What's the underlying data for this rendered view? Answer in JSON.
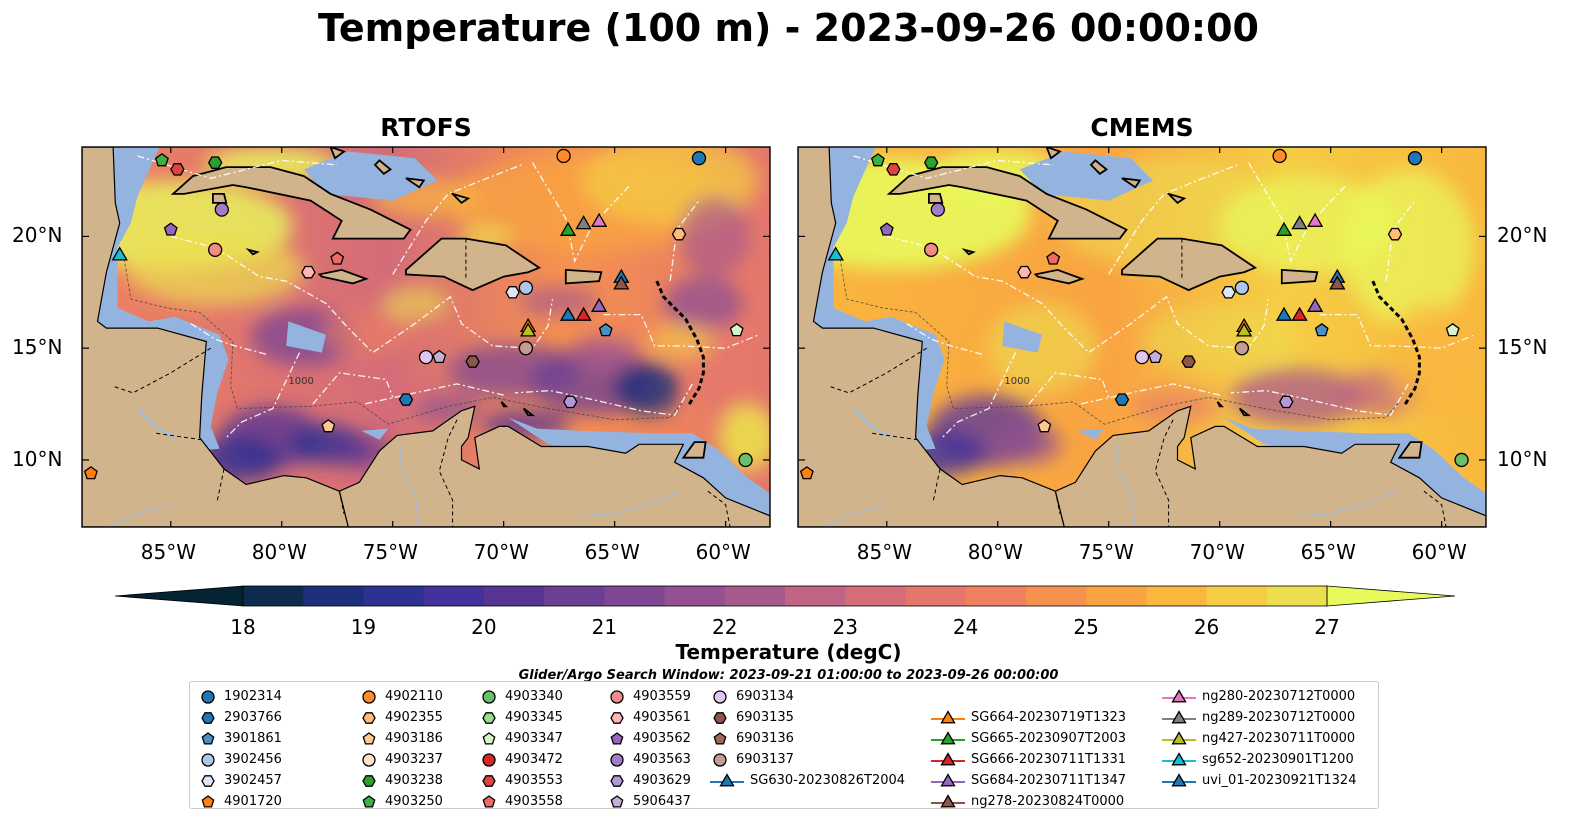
{
  "figure": {
    "title": "Temperature (100 m) - 2023-09-26 00:00:00",
    "panels": [
      {
        "title": "RTOFS"
      },
      {
        "title": "CMEMS"
      }
    ],
    "lon_ticks": [
      "85°W",
      "80°W",
      "75°W",
      "70°W",
      "65°W",
      "60°W"
    ],
    "lat_ticks": [
      "20°N",
      "15°N",
      "10°N"
    ],
    "contour_labels": [
      "1000"
    ],
    "colorbar": {
      "label": "Temperature (degC)",
      "ticks": [
        "18",
        "19",
        "20",
        "21",
        "22",
        "23",
        "24",
        "25",
        "26",
        "27"
      ],
      "min": 18,
      "max": 27,
      "extend": "both",
      "colormap": "thermal",
      "colors": [
        "#042333",
        "#0d2b4f",
        "#1d2e7c",
        "#2f3192",
        "#44329c",
        "#583593",
        "#6b3f94",
        "#7e4893",
        "#935191",
        "#a95a8c",
        "#c06384",
        "#d46c79",
        "#e4766c",
        "#ef8160",
        "#f6914f",
        "#f9a342",
        "#f9b73e",
        "#f5cd45",
        "#ecde4e",
        "#e8fa5b"
      ]
    },
    "legend": {
      "title": "Glider/Argo Search Window: 2023-09-21 01:00:00 to 2023-09-26 00:00:00",
      "items": [
        {
          "label": "1902314",
          "marker": "circle",
          "color": "#1f77b4"
        },
        {
          "label": "2903766",
          "marker": "hexagon",
          "color": "#1f77b4"
        },
        {
          "label": "3901861",
          "marker": "pentagon",
          "color": "#4a90c8"
        },
        {
          "label": "3902456",
          "marker": "circle",
          "color": "#aec7e8"
        },
        {
          "label": "3902457",
          "marker": "hexagon",
          "color": "#dbe9f6"
        },
        {
          "label": "4901720",
          "marker": "pentagon",
          "color": "#ff7f0e"
        },
        {
          "label": "4902110",
          "marker": "circle",
          "color": "#ff8c2a"
        },
        {
          "label": "4902355",
          "marker": "hexagon",
          "color": "#ffbb78"
        },
        {
          "label": "4903186",
          "marker": "pentagon",
          "color": "#ffc88e"
        },
        {
          "label": "4903237",
          "marker": "circle",
          "color": "#ffe4c4"
        },
        {
          "label": "4903238",
          "marker": "hexagon",
          "color": "#2ca02c"
        },
        {
          "label": "4903250",
          "marker": "pentagon",
          "color": "#3cb043"
        },
        {
          "label": "4903340",
          "marker": "circle",
          "color": "#6abf69"
        },
        {
          "label": "4903345",
          "marker": "hexagon",
          "color": "#98df8a"
        },
        {
          "label": "4903347",
          "marker": "pentagon",
          "color": "#d4f5cc"
        },
        {
          "label": "4903472",
          "marker": "circle",
          "color": "#d62728"
        },
        {
          "label": "4903553",
          "marker": "hexagon",
          "color": "#e0443f"
        },
        {
          "label": "4903558",
          "marker": "pentagon",
          "color": "#ef6a64"
        },
        {
          "label": "4903559",
          "marker": "circle",
          "color": "#f08b88"
        },
        {
          "label": "4903561",
          "marker": "hexagon",
          "color": "#ffb6b3"
        },
        {
          "label": "4903562",
          "marker": "pentagon",
          "color": "#9467bd"
        },
        {
          "label": "4903563",
          "marker": "circle",
          "color": "#a17cc8"
        },
        {
          "label": "4903629",
          "marker": "hexagon",
          "color": "#b497d6"
        },
        {
          "label": "5906437",
          "marker": "pentagon",
          "color": "#c5b0d5"
        },
        {
          "label": "6903134",
          "marker": "circle",
          "color": "#e2c5f0"
        },
        {
          "label": "6903135",
          "marker": "hexagon",
          "color": "#8c564b"
        },
        {
          "label": "6903136",
          "marker": "pentagon",
          "color": "#a0685c"
        },
        {
          "label": "6903137",
          "marker": "circle",
          "color": "#c49c94"
        },
        {
          "label": "SG630-20230826T2004",
          "marker": "line-triangle",
          "color": "#1f77b4"
        },
        {
          "label": "SG664-20230719T1323",
          "marker": "line-triangle",
          "color": "#ff7f0e"
        },
        {
          "label": "SG665-20230907T2003",
          "marker": "line-triangle",
          "color": "#2ca02c"
        },
        {
          "label": "SG666-20230711T1331",
          "marker": "line-triangle",
          "color": "#d62728"
        },
        {
          "label": "SG684-20230711T1347",
          "marker": "line-triangle",
          "color": "#9467bd"
        },
        {
          "label": "ng278-20230824T0000",
          "marker": "line-triangle",
          "color": "#8c564b"
        },
        {
          "label": "ng280-20230712T0000",
          "marker": "line-triangle",
          "color": "#e377c2"
        },
        {
          "label": "ng289-20230712T0000",
          "marker": "line-triangle",
          "color": "#7f7f7f"
        },
        {
          "label": "ng427-20230711T0000",
          "marker": "line-triangle",
          "color": "#bcbd22"
        },
        {
          "label": "sg652-20230901T1200",
          "marker": "line-triangle",
          "color": "#17becf"
        },
        {
          "label": "uvi_01-20230921T1324",
          "marker": "line-triangle",
          "color": "#1f77b4"
        }
      ]
    }
  },
  "chart_data": {
    "type": "heatmap",
    "title": "Temperature (100 m) - 2023-09-26 00:00:00",
    "variable": "Temperature at 100 m depth",
    "units": "degC",
    "projection": "map",
    "panels": [
      "RTOFS",
      "CMEMS"
    ],
    "lon_range": [
      -89,
      -58
    ],
    "lat_range": [
      7,
      24
    ],
    "color_range": [
      18,
      27
    ],
    "observations": [
      {
        "id": "1902314",
        "kind": "argo",
        "lon": -61.2,
        "lat": 23.5
      },
      {
        "id": "4902110",
        "kind": "argo",
        "lon": -67.3,
        "lat": 23.6
      },
      {
        "id": "4903250",
        "kind": "argo",
        "lon": -85.4,
        "lat": 23.4
      },
      {
        "id": "4903553",
        "kind": "argo",
        "lon": -84.7,
        "lat": 23.0
      },
      {
        "id": "4903238",
        "kind": "argo",
        "lon": -83.0,
        "lat": 23.3
      },
      {
        "id": "4903563",
        "kind": "argo",
        "lon": -82.7,
        "lat": 21.2
      },
      {
        "id": "4903562",
        "kind": "argo",
        "lon": -85.0,
        "lat": 20.3
      },
      {
        "id": "4903559",
        "kind": "argo",
        "lon": -83.0,
        "lat": 19.4
      },
      {
        "id": "4903561",
        "kind": "argo",
        "lon": -78.8,
        "lat": 18.4
      },
      {
        "id": "4903558",
        "kind": "argo",
        "lon": -77.5,
        "lat": 19.0
      },
      {
        "id": "4902355",
        "kind": "argo",
        "lon": -62.1,
        "lat": 20.1
      },
      {
        "id": "3902456",
        "kind": "argo",
        "lon": -69.0,
        "lat": 17.7
      },
      {
        "id": "3902457",
        "kind": "argo",
        "lon": -69.6,
        "lat": 17.5
      },
      {
        "id": "3901861",
        "kind": "argo",
        "lon": -65.4,
        "lat": 15.8
      },
      {
        "id": "4903347",
        "kind": "argo",
        "lon": -59.5,
        "lat": 15.8
      },
      {
        "id": "6903137",
        "kind": "argo",
        "lon": -69.0,
        "lat": 15.0
      },
      {
        "id": "6903134",
        "kind": "argo",
        "lon": -73.5,
        "lat": 14.6
      },
      {
        "id": "5906437",
        "kind": "argo",
        "lon": -72.9,
        "lat": 14.6
      },
      {
        "id": "6903135",
        "kind": "argo",
        "lon": -71.4,
        "lat": 14.4
      },
      {
        "id": "2903766",
        "kind": "argo",
        "lon": -74.4,
        "lat": 12.7
      },
      {
        "id": "4903629",
        "kind": "argo",
        "lon": -67.0,
        "lat": 12.6
      },
      {
        "id": "4903186",
        "kind": "argo",
        "lon": -77.9,
        "lat": 11.5
      },
      {
        "id": "4903340",
        "kind": "argo",
        "lon": -59.1,
        "lat": 10.0
      },
      {
        "id": "4901720",
        "kind": "argo",
        "lon": -88.6,
        "lat": 9.4
      },
      {
        "id": "sg652-20230901T1200",
        "kind": "glider",
        "lon": -87.3,
        "lat": 19.2
      },
      {
        "id": "SG665-20230907T2003",
        "kind": "glider",
        "lon": -67.1,
        "lat": 20.3
      },
      {
        "id": "ng289-20230712T0000",
        "kind": "glider",
        "lon": -66.4,
        "lat": 20.6
      },
      {
        "id": "ng280-20230712T0000",
        "kind": "glider",
        "lon": -65.7,
        "lat": 20.7
      },
      {
        "id": "uvi_01-20230921T1324",
        "kind": "glider",
        "lon": -64.7,
        "lat": 18.2
      },
      {
        "id": "ng278-20230824T0000",
        "kind": "glider",
        "lon": -64.7,
        "lat": 17.9
      },
      {
        "id": "SG684-20230711T1347",
        "kind": "glider",
        "lon": -65.7,
        "lat": 16.9
      },
      {
        "id": "SG630-20230826T2004",
        "kind": "glider",
        "lon": -67.1,
        "lat": 16.5
      },
      {
        "id": "SG666-20230711T1331",
        "kind": "glider",
        "lon": -66.4,
        "lat": 16.5
      },
      {
        "id": "SG664-20230719T1323",
        "kind": "glider",
        "lon": -68.9,
        "lat": 16.0
      },
      {
        "id": "ng427-20230711T0000",
        "kind": "glider",
        "lon": -68.9,
        "lat": 15.8
      }
    ]
  }
}
